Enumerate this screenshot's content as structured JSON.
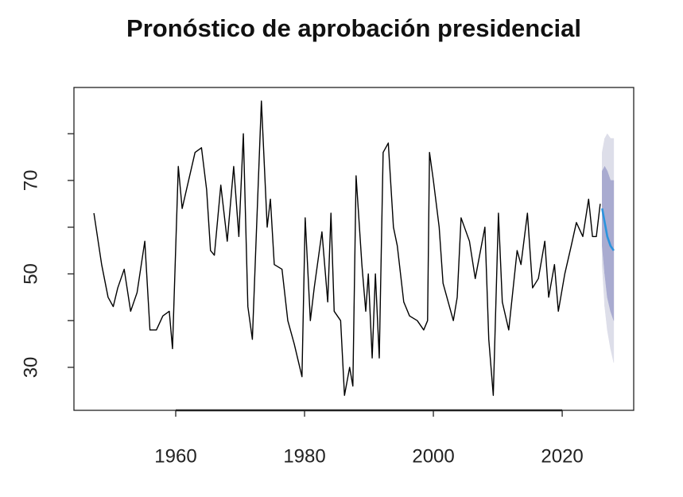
{
  "chart_data": {
    "type": "line",
    "title": "Pronóstico de aprobación presidencial",
    "x": [
      1947.3,
      1948.5,
      1949.5,
      1950.3,
      1951,
      1952,
      1953,
      1954,
      1955.2,
      1956,
      1957,
      1958,
      1959,
      1959.5,
      1960.4,
      1961,
      1962,
      1963,
      1964,
      1964.8,
      1965.4,
      1966,
      1967,
      1968,
      1969,
      1969.8,
      1970.5,
      1971.2,
      1971.9,
      1972.5,
      1973.3,
      1974.2,
      1974.7,
      1975.3,
      1976.5,
      1977.4,
      1978.4,
      1979.6,
      1980.1,
      1980.9,
      1981.5,
      1982.7,
      1983.6,
      1984.1,
      1984.6,
      1985.6,
      1986.2,
      1987,
      1987.5,
      1988,
      1988.9,
      1989.5,
      1989.9,
      1990.5,
      1991,
      1991.6,
      1992.2,
      1993,
      1993.8,
      1994.4,
      1995.4,
      1996.3,
      1997.5,
      1998.5,
      1999.1,
      1999.4,
      2000,
      2000.9,
      2001.5,
      2002.1,
      2003.1,
      2003.7,
      2004.3,
      2005.6,
      2006.5,
      2008,
      2008.6,
      2009.3,
      2010.1,
      2010.7,
      2011.7,
      2013,
      2013.6,
      2014.6,
      2015.4,
      2016.3,
      2017.3,
      2017.9,
      2018.8,
      2019.4,
      2020.4,
      2021.4,
      2022.2,
      2023.2,
      2024.1,
      2024.7,
      2025.3,
      2025.9
    ],
    "values": [
      63,
      52,
      45,
      43,
      47,
      51,
      42,
      46,
      57,
      38,
      38,
      41,
      42,
      34,
      73,
      64,
      70,
      76,
      77,
      68,
      55,
      54,
      69,
      57,
      73,
      58,
      80,
      43,
      36,
      58,
      87,
      60,
      66,
      52,
      51,
      40,
      35,
      28,
      62,
      40,
      47,
      59,
      44,
      63,
      42,
      40,
      24,
      30,
      26,
      71,
      52,
      42,
      50,
      32,
      50,
      32,
      76,
      78,
      60,
      56,
      44,
      41,
      40,
      38,
      40,
      76,
      70,
      60,
      48,
      45,
      40,
      45,
      62,
      57,
      49,
      60,
      36,
      24,
      63,
      44,
      38,
      55,
      52,
      63,
      47,
      49,
      57,
      45,
      52,
      42,
      50,
      56,
      61,
      58,
      66,
      58,
      58,
      65
    ],
    "color": "#000000",
    "forecast": {
      "x": [
        2026.2,
        2026.6,
        2027,
        2027.5,
        2028
      ],
      "values": [
        64,
        61,
        58,
        56,
        55
      ],
      "lower80": [
        56,
        50,
        45,
        42,
        40
      ],
      "upper80": [
        72,
        73,
        72,
        70,
        70
      ],
      "lower95": [
        52,
        43,
        38,
        34,
        31
      ],
      "upper95": [
        76,
        79,
        80,
        79,
        79
      ],
      "color": "#2b93dd",
      "color80": "#a9abd0",
      "color95": "#dddee9"
    },
    "xlim": [
      1944.2,
      2031.1
    ],
    "xticks": [
      1960,
      1980,
      2000,
      2020
    ],
    "ylim": [
      20.8,
      89.9
    ],
    "yticks": [
      30,
      50,
      70
    ],
    "yticks_minor": [
      40,
      60,
      80
    ]
  }
}
